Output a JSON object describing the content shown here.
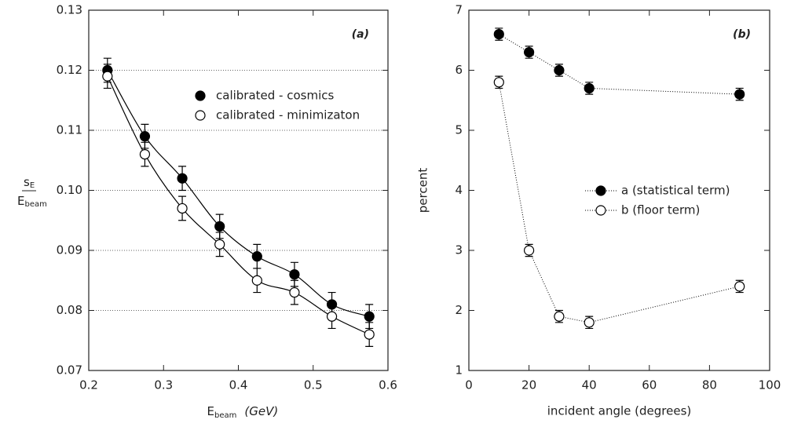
{
  "chart_data": [
    {
      "type": "scatter",
      "annotation": "(a)",
      "xlabel": {
        "text": "E",
        "sub": "beam",
        "unit": "(GeV)"
      },
      "ylabel": {
        "numerator": "s",
        "numerator_sub": "E",
        "denominator": "E",
        "denominator_sub": "beam"
      },
      "x": [
        0.225,
        0.275,
        0.325,
        0.375,
        0.425,
        0.475,
        0.525,
        0.575
      ],
      "series": [
        {
          "name": "calibrated - cosmics",
          "color": "#000000",
          "marker_fill": "#000000",
          "values": [
            0.12,
            0.109,
            0.102,
            0.094,
            0.089,
            0.086,
            0.081,
            0.079
          ],
          "errors": [
            0.002,
            0.002,
            0.002,
            0.002,
            0.002,
            0.002,
            0.002,
            0.002
          ]
        },
        {
          "name": "calibrated - minimizaton",
          "color": "#000000",
          "marker_fill": "#ffffff",
          "values": [
            0.119,
            0.106,
            0.097,
            0.091,
            0.085,
            0.083,
            0.079,
            0.076
          ],
          "errors": [
            0.002,
            0.002,
            0.002,
            0.002,
            0.002,
            0.002,
            0.002,
            0.002
          ]
        }
      ],
      "xlim": [
        0.2,
        0.6
      ],
      "xticks": [
        0.2,
        0.3,
        0.4,
        0.5,
        0.6
      ],
      "ylim": [
        0.07,
        0.13
      ],
      "yticks": [
        0.07,
        0.08,
        0.09,
        {
          "value": 0.1,
          "label": "0.10"
        },
        0.11,
        0.12,
        0.13
      ],
      "grid": true,
      "line_style": "smooth",
      "legend": "upper right"
    },
    {
      "type": "scatter",
      "annotation": "(b)",
      "xlabel": {
        "text": "incident angle (degrees)"
      },
      "ylabel": {
        "text": "percent"
      },
      "x": [
        10,
        20,
        30,
        40,
        90
      ],
      "series": [
        {
          "name": "a (statistical term)",
          "color": "#000000",
          "marker_fill": "#000000",
          "values": [
            6.6,
            6.3,
            6.0,
            5.7,
            5.6
          ],
          "errors": [
            0.1,
            0.1,
            0.1,
            0.1,
            0.1
          ]
        },
        {
          "name": "b (floor term)",
          "color": "#000000",
          "marker_fill": "#ffffff",
          "values": [
            5.8,
            3.0,
            1.9,
            1.8,
            2.4
          ],
          "errors": [
            0.1,
            0.1,
            0.1,
            0.1,
            0.1
          ]
        }
      ],
      "xlim": [
        0,
        100
      ],
      "xticks": [
        0,
        20,
        40,
        60,
        80,
        100
      ],
      "ylim": [
        1,
        7
      ],
      "yticks": [
        1,
        2,
        3,
        4,
        5,
        6,
        7
      ],
      "grid": false,
      "line_style": "dotted",
      "legend": "center right"
    }
  ]
}
